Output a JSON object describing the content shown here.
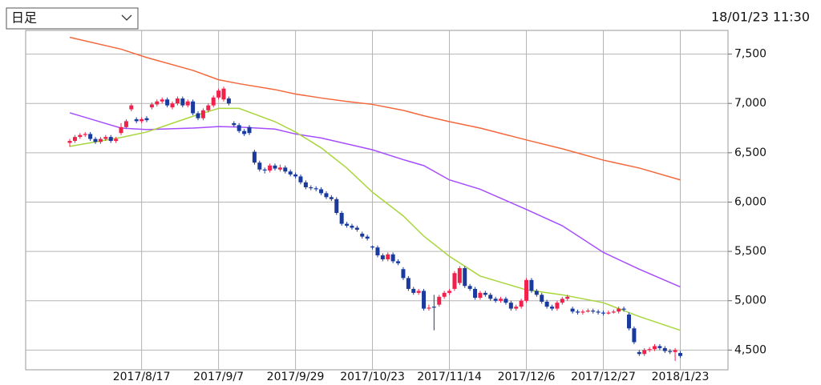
{
  "chart_data": {
    "type": "candlestick",
    "selector": "日足",
    "timestamp": "18/01/23 11:30",
    "up_color": "#f2214c",
    "down_color": "#1a3a9e",
    "xlim": [
      -8.6,
      128.3
    ],
    "xticks": [
      {
        "value": 14,
        "label": "2017/8/17"
      },
      {
        "value": 29,
        "label": "2017/9/7"
      },
      {
        "value": 44,
        "label": "2017/9/29"
      },
      {
        "value": 59,
        "label": "2017/10/23"
      },
      {
        "value": 74,
        "label": "2017/11/14"
      },
      {
        "value": 89,
        "label": "2017/12/6"
      },
      {
        "value": 104,
        "label": "2017/12/27"
      },
      {
        "value": 119,
        "label": "2018/1/23"
      }
    ],
    "ylim": [
      4300,
      7740
    ],
    "yticks": [
      {
        "value": 4500,
        "label": "4,500"
      },
      {
        "value": 5000,
        "label": "5,000"
      },
      {
        "value": 5500,
        "label": "5,500"
      },
      {
        "value": 6000,
        "label": "6,000"
      },
      {
        "value": 6500,
        "label": "6,500"
      },
      {
        "value": 7000,
        "label": "7,000"
      },
      {
        "value": 7500,
        "label": "7,500"
      }
    ],
    "grid": true,
    "candles": [
      [
        6600,
        6640,
        6560,
        6620
      ],
      [
        6620,
        6680,
        6600,
        6660
      ],
      [
        6660,
        6700,
        6640,
        6680
      ],
      [
        6680,
        6710,
        6660,
        6690
      ],
      [
        6690,
        6710,
        6620,
        6640
      ],
      [
        6640,
        6660,
        6590,
        6610
      ],
      [
        6610,
        6660,
        6590,
        6640
      ],
      [
        6640,
        6680,
        6620,
        6660
      ],
      [
        6660,
        6680,
        6600,
        6620
      ],
      [
        6620,
        6660,
        6600,
        6640
      ],
      [
        6700,
        6800,
        6680,
        6760
      ],
      [
        6760,
        6840,
        6740,
        6820
      ],
      [
        6940,
        7000,
        6920,
        6980
      ],
      [
        6840,
        6860,
        6800,
        6820
      ],
      [
        6820,
        6860,
        6800,
        6840
      ],
      [
        6850,
        6870,
        6810,
        6830
      ],
      [
        6960,
        7010,
        6940,
        6990
      ],
      [
        6990,
        7040,
        6970,
        7020
      ],
      [
        7020,
        7060,
        7000,
        7040
      ],
      [
        7040,
        7060,
        6960,
        6980
      ],
      [
        6960,
        7020,
        6940,
        7000
      ],
      [
        7000,
        7070,
        6980,
        7050
      ],
      [
        7050,
        7070,
        6960,
        6980
      ],
      [
        6980,
        7040,
        6960,
        7020
      ],
      [
        7020,
        7040,
        6880,
        6900
      ],
      [
        6900,
        6920,
        6830,
        6850
      ],
      [
        6850,
        6950,
        6830,
        6930
      ],
      [
        6930,
        7000,
        6910,
        6980
      ],
      [
        6980,
        7080,
        6960,
        7060
      ],
      [
        7060,
        7150,
        7040,
        7130
      ],
      [
        7040,
        7170,
        7020,
        7150
      ],
      [
        7050,
        7070,
        6980,
        7000
      ],
      [
        6800,
        6820,
        6760,
        6780
      ],
      [
        6780,
        6800,
        6700,
        6720
      ],
      [
        6720,
        6740,
        6670,
        6690
      ],
      [
        6760,
        6780,
        6680,
        6700
      ],
      [
        6510,
        6530,
        6380,
        6400
      ],
      [
        6400,
        6420,
        6310,
        6330
      ],
      [
        6330,
        6350,
        6290,
        6320
      ],
      [
        6320,
        6390,
        6300,
        6370
      ],
      [
        6370,
        6390,
        6320,
        6340
      ],
      [
        6330,
        6380,
        6310,
        6350
      ],
      [
        6350,
        6370,
        6290,
        6310
      ],
      [
        6310,
        6330,
        6260,
        6280
      ],
      [
        6280,
        6300,
        6240,
        6260
      ],
      [
        6260,
        6280,
        6180,
        6200
      ],
      [
        6200,
        6220,
        6130,
        6150
      ],
      [
        6150,
        6170,
        6120,
        6140
      ],
      [
        6140,
        6160,
        6110,
        6130
      ],
      [
        6130,
        6150,
        6070,
        6090
      ],
      [
        6090,
        6110,
        6030,
        6050
      ],
      [
        6050,
        6070,
        6010,
        6030
      ],
      [
        6030,
        6050,
        5870,
        5890
      ],
      [
        5890,
        5910,
        5760,
        5780
      ],
      [
        5780,
        5800,
        5740,
        5760
      ],
      [
        5760,
        5780,
        5720,
        5740
      ],
      [
        5740,
        5760,
        5700,
        5720
      ],
      [
        5680,
        5700,
        5630,
        5650
      ],
      [
        5650,
        5670,
        5610,
        5630
      ],
      [
        5550,
        5560,
        5520,
        5540
      ],
      [
        5540,
        5560,
        5440,
        5460
      ],
      [
        5460,
        5480,
        5400,
        5420
      ],
      [
        5420,
        5490,
        5400,
        5470
      ],
      [
        5470,
        5490,
        5380,
        5400
      ],
      [
        5400,
        5420,
        5360,
        5380
      ],
      [
        5320,
        5340,
        5210,
        5230
      ],
      [
        5230,
        5250,
        5100,
        5120
      ],
      [
        5120,
        5140,
        5060,
        5080
      ],
      [
        5080,
        5120,
        5060,
        5100
      ],
      [
        5100,
        5120,
        4900,
        4920
      ],
      [
        4920,
        4960,
        4900,
        4930
      ],
      [
        4940,
        5060,
        4700,
        4930
      ],
      [
        4960,
        5060,
        4940,
        5040
      ],
      [
        5040,
        5100,
        5020,
        5080
      ],
      [
        5080,
        5120,
        5060,
        5100
      ],
      [
        5120,
        5300,
        5100,
        5280
      ],
      [
        5180,
        5350,
        5160,
        5330
      ],
      [
        5330,
        5350,
        5130,
        5150
      ],
      [
        5150,
        5170,
        5100,
        5120
      ],
      [
        5120,
        5140,
        5010,
        5030
      ],
      [
        5030,
        5100,
        5010,
        5080
      ],
      [
        5080,
        5100,
        5040,
        5060
      ],
      [
        5060,
        5080,
        5000,
        5020
      ],
      [
        5020,
        5040,
        4980,
        5000
      ],
      [
        5000,
        5040,
        4980,
        5020
      ],
      [
        5020,
        5040,
        4960,
        4980
      ],
      [
        4980,
        5000,
        4900,
        4920
      ],
      [
        4920,
        4960,
        4900,
        4940
      ],
      [
        4940,
        5020,
        4920,
        5000
      ],
      [
        5000,
        5230,
        4980,
        5210
      ],
      [
        5210,
        5230,
        5080,
        5100
      ],
      [
        5100,
        5120,
        5040,
        5060
      ],
      [
        5060,
        5080,
        4970,
        4990
      ],
      [
        4990,
        5010,
        4920,
        4940
      ],
      [
        4940,
        4960,
        4900,
        4920
      ],
      [
        4920,
        5000,
        4900,
        4980
      ],
      [
        4980,
        5040,
        4960,
        5020
      ],
      [
        5020,
        5060,
        5000,
        5040
      ],
      [
        4920,
        4940,
        4870,
        4890
      ],
      [
        4890,
        4910,
        4860,
        4880
      ],
      [
        4880,
        4910,
        4860,
        4890
      ],
      [
        4890,
        4920,
        4880,
        4900
      ],
      [
        4900,
        4920,
        4870,
        4890
      ],
      [
        4890,
        4910,
        4860,
        4880
      ],
      [
        4880,
        4900,
        4850,
        4870
      ],
      [
        4870,
        4900,
        4860,
        4880
      ],
      [
        4880,
        4910,
        4870,
        4890
      ],
      [
        4890,
        4940,
        4870,
        4920
      ],
      [
        4920,
        4940,
        4890,
        4910
      ],
      [
        4860,
        4880,
        4700,
        4720
      ],
      [
        4720,
        4740,
        4560,
        4580
      ],
      [
        4480,
        4500,
        4440,
        4460
      ],
      [
        4460,
        4520,
        4440,
        4500
      ],
      [
        4500,
        4530,
        4480,
        4510
      ],
      [
        4510,
        4560,
        4490,
        4540
      ],
      [
        4540,
        4560,
        4500,
        4520
      ],
      [
        4520,
        4540,
        4470,
        4490
      ],
      [
        4490,
        4510,
        4460,
        4480
      ],
      [
        4480,
        4520,
        4390,
        4500
      ],
      [
        4470,
        4490,
        4420,
        4440
      ]
    ],
    "lines": [
      {
        "color": "#f4683c",
        "x": [
          0,
          10,
          15,
          24,
          29,
          33,
          40,
          44,
          49,
          54,
          59,
          65,
          69,
          74,
          80,
          89,
          96,
          104,
          111,
          119
        ],
        "values": [
          7670,
          7550,
          7465,
          7335,
          7240,
          7200,
          7140,
          7095,
          7055,
          7020,
          6990,
          6930,
          6875,
          6815,
          6750,
          6630,
          6540,
          6425,
          6345,
          6225
        ]
      },
      {
        "color": "#a64dff",
        "x": [
          0,
          10,
          15,
          24,
          29,
          33,
          40,
          44,
          49,
          54,
          59,
          65,
          69,
          74,
          80,
          89,
          96,
          104,
          111,
          119
        ],
        "values": [
          6905,
          6750,
          6735,
          6750,
          6765,
          6760,
          6740,
          6690,
          6650,
          6590,
          6530,
          6430,
          6370,
          6225,
          6130,
          5925,
          5760,
          5490,
          5320,
          5140
        ]
      },
      {
        "color": "#a8d63c",
        "x": [
          0,
          10,
          15,
          24,
          29,
          33,
          40,
          44,
          49,
          54,
          59,
          65,
          69,
          74,
          80,
          89,
          96,
          104,
          111,
          119
        ],
        "values": [
          6565,
          6655,
          6710,
          6870,
          6950,
          6950,
          6815,
          6710,
          6550,
          6345,
          6100,
          5860,
          5655,
          5450,
          5250,
          5110,
          5060,
          4980,
          4840,
          4700
        ]
      }
    ]
  }
}
